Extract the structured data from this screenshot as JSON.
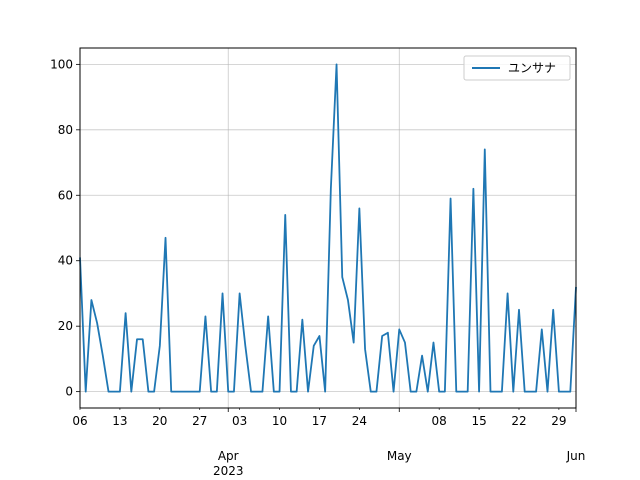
{
  "chart_data": {
    "type": "line",
    "title": "",
    "xlabel": "",
    "ylabel": "",
    "x_start": "2023-03-06",
    "x_end": "2023-06-01",
    "ylim": [
      -5,
      105
    ],
    "grid": true,
    "legend": "top-right",
    "y_ticks": [
      "0",
      "20",
      "40",
      "60",
      "80",
      "100"
    ],
    "x_tick_labels": [
      {
        "date": "2023-03-06",
        "label": "06"
      },
      {
        "date": "2023-03-13",
        "label": "13"
      },
      {
        "date": "2023-03-20",
        "label": "20"
      },
      {
        "date": "2023-03-27",
        "label": "27"
      },
      {
        "date": "2023-04-03",
        "label": "03"
      },
      {
        "date": "2023-04-10",
        "label": "10"
      },
      {
        "date": "2023-04-17",
        "label": "17"
      },
      {
        "date": "2023-04-24",
        "label": "24"
      },
      {
        "date": "2023-05-08",
        "label": "08"
      },
      {
        "date": "2023-05-15",
        "label": "15"
      },
      {
        "date": "2023-05-22",
        "label": "22"
      },
      {
        "date": "2023-05-29",
        "label": "29"
      }
    ],
    "x_major_labels": [
      {
        "date": "2023-04-01",
        "label": "Apr",
        "sub": "2023"
      },
      {
        "date": "2023-05-01",
        "label": "May",
        "sub": ""
      },
      {
        "date": "2023-06-01",
        "label": "Jun",
        "sub": ""
      }
    ],
    "series": [
      {
        "name": "ユンサナ",
        "color": "#1f77b4",
        "x": [
          "2023-03-06",
          "2023-03-07",
          "2023-03-08",
          "2023-03-09",
          "2023-03-10",
          "2023-03-11",
          "2023-03-12",
          "2023-03-13",
          "2023-03-14",
          "2023-03-15",
          "2023-03-16",
          "2023-03-17",
          "2023-03-18",
          "2023-03-19",
          "2023-03-20",
          "2023-03-21",
          "2023-03-22",
          "2023-03-23",
          "2023-03-24",
          "2023-03-25",
          "2023-03-26",
          "2023-03-27",
          "2023-03-28",
          "2023-03-29",
          "2023-03-30",
          "2023-03-31",
          "2023-04-01",
          "2023-04-02",
          "2023-04-03",
          "2023-04-04",
          "2023-04-05",
          "2023-04-06",
          "2023-04-07",
          "2023-04-08",
          "2023-04-09",
          "2023-04-10",
          "2023-04-11",
          "2023-04-12",
          "2023-04-13",
          "2023-04-14",
          "2023-04-15",
          "2023-04-16",
          "2023-04-17",
          "2023-04-18",
          "2023-04-19",
          "2023-04-20",
          "2023-04-21",
          "2023-04-22",
          "2023-04-23",
          "2023-04-24",
          "2023-04-25",
          "2023-04-26",
          "2023-04-27",
          "2023-04-28",
          "2023-04-29",
          "2023-04-30",
          "2023-05-01",
          "2023-05-02",
          "2023-05-03",
          "2023-05-04",
          "2023-05-05",
          "2023-05-06",
          "2023-05-07",
          "2023-05-08",
          "2023-05-09",
          "2023-05-10",
          "2023-05-11",
          "2023-05-12",
          "2023-05-13",
          "2023-05-14",
          "2023-05-15",
          "2023-05-16",
          "2023-05-17",
          "2023-05-18",
          "2023-05-19",
          "2023-05-20",
          "2023-05-21",
          "2023-05-22",
          "2023-05-23",
          "2023-05-24",
          "2023-05-25",
          "2023-05-26",
          "2023-05-27",
          "2023-05-28",
          "2023-05-29",
          "2023-05-30",
          "2023-05-31",
          "2023-06-01"
        ],
        "y": [
          41,
          0,
          28,
          21,
          11,
          0,
          0,
          0,
          24,
          0,
          16,
          16,
          0,
          0,
          14,
          47,
          0,
          0,
          0,
          0,
          0,
          0,
          23,
          0,
          0,
          30,
          0,
          0,
          30,
          14,
          0,
          0,
          0,
          23,
          0,
          0,
          54,
          0,
          0,
          22,
          0,
          14,
          17,
          0,
          62,
          100,
          35,
          28,
          15,
          56,
          13,
          0,
          0,
          17,
          18,
          0,
          19,
          15,
          0,
          0,
          11,
          0,
          15,
          0,
          0,
          59,
          0,
          0,
          0,
          62,
          0,
          74,
          0,
          0,
          0,
          30,
          0,
          25,
          0,
          0,
          0,
          19,
          0,
          25,
          0,
          0,
          0,
          32
        ]
      }
    ]
  }
}
